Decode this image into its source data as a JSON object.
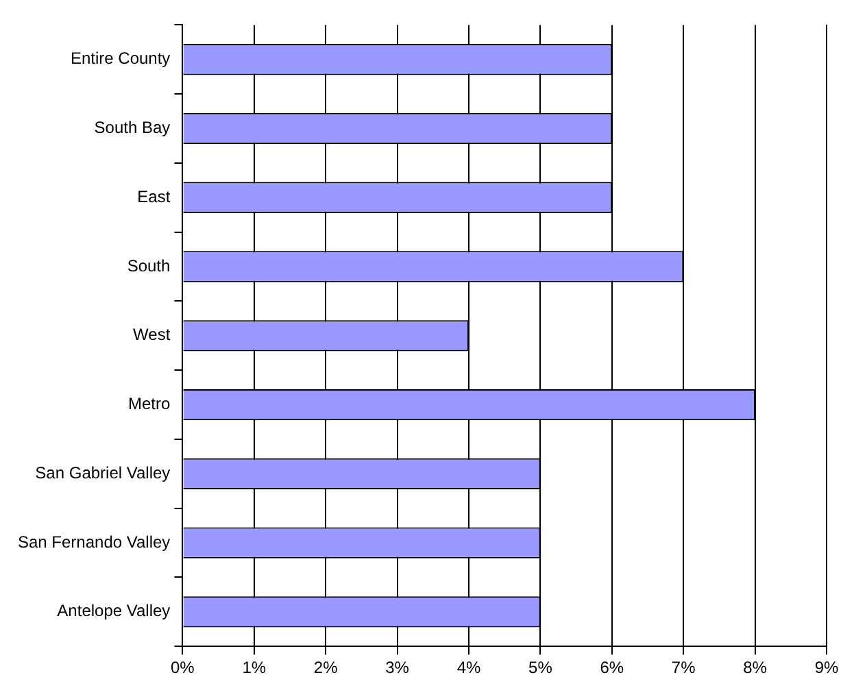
{
  "chart_data": {
    "type": "bar",
    "orientation": "horizontal",
    "categories": [
      "Entire County",
      "South Bay",
      "East",
      "South",
      "West",
      "Metro",
      "San Gabriel Valley",
      "San Fernando Valley",
      "Antelope Valley"
    ],
    "values": [
      6,
      6,
      6,
      7,
      4,
      8,
      5,
      5,
      5
    ],
    "color": "#9999ff",
    "xlim": [
      0,
      9
    ],
    "xticks": [
      {
        "value": 0,
        "label": "0%"
      },
      {
        "value": 1,
        "label": "1%"
      },
      {
        "value": 2,
        "label": "2%"
      },
      {
        "value": 3,
        "label": "3%"
      },
      {
        "value": 4,
        "label": "4%"
      },
      {
        "value": 5,
        "label": "5%"
      },
      {
        "value": 6,
        "label": "6%"
      },
      {
        "value": 7,
        "label": "7%"
      },
      {
        "value": 8,
        "label": "8%"
      },
      {
        "value": 9,
        "label": "9%"
      }
    ],
    "grid": "x"
  }
}
